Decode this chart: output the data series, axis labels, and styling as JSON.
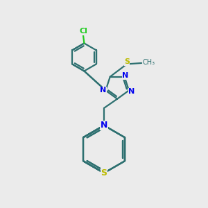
{
  "background_color": "#ebebeb",
  "bond_color": "#2d7070",
  "N_color": "#0000ee",
  "S_color": "#bbbb00",
  "Cl_color": "#22cc22",
  "line_width": 1.6,
  "figsize": [
    3.0,
    3.0
  ],
  "dpi": 100,
  "xlim": [
    0,
    10
  ],
  "ylim": [
    0,
    10
  ]
}
